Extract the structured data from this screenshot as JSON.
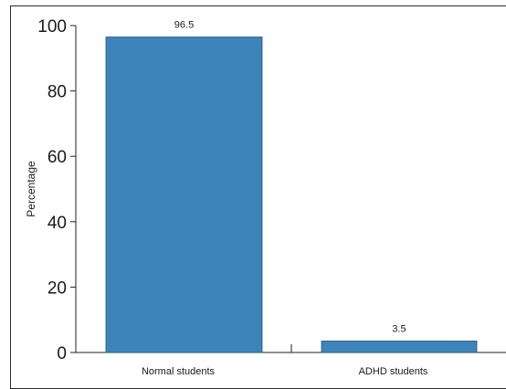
{
  "chart_data": {
    "type": "bar",
    "title": "",
    "xlabel": "",
    "ylabel": "Percentage",
    "ylim": [
      0,
      100
    ],
    "yticks": [
      0,
      20,
      40,
      60,
      80,
      100
    ],
    "grid": false,
    "categories": [
      "Normal students",
      "ADHD students"
    ],
    "values": [
      96.5,
      3.5
    ],
    "data_labels": [
      "96.5",
      "3.5"
    ],
    "bar_color": "#3d84bb",
    "bar_edge_color": "#24557d"
  }
}
